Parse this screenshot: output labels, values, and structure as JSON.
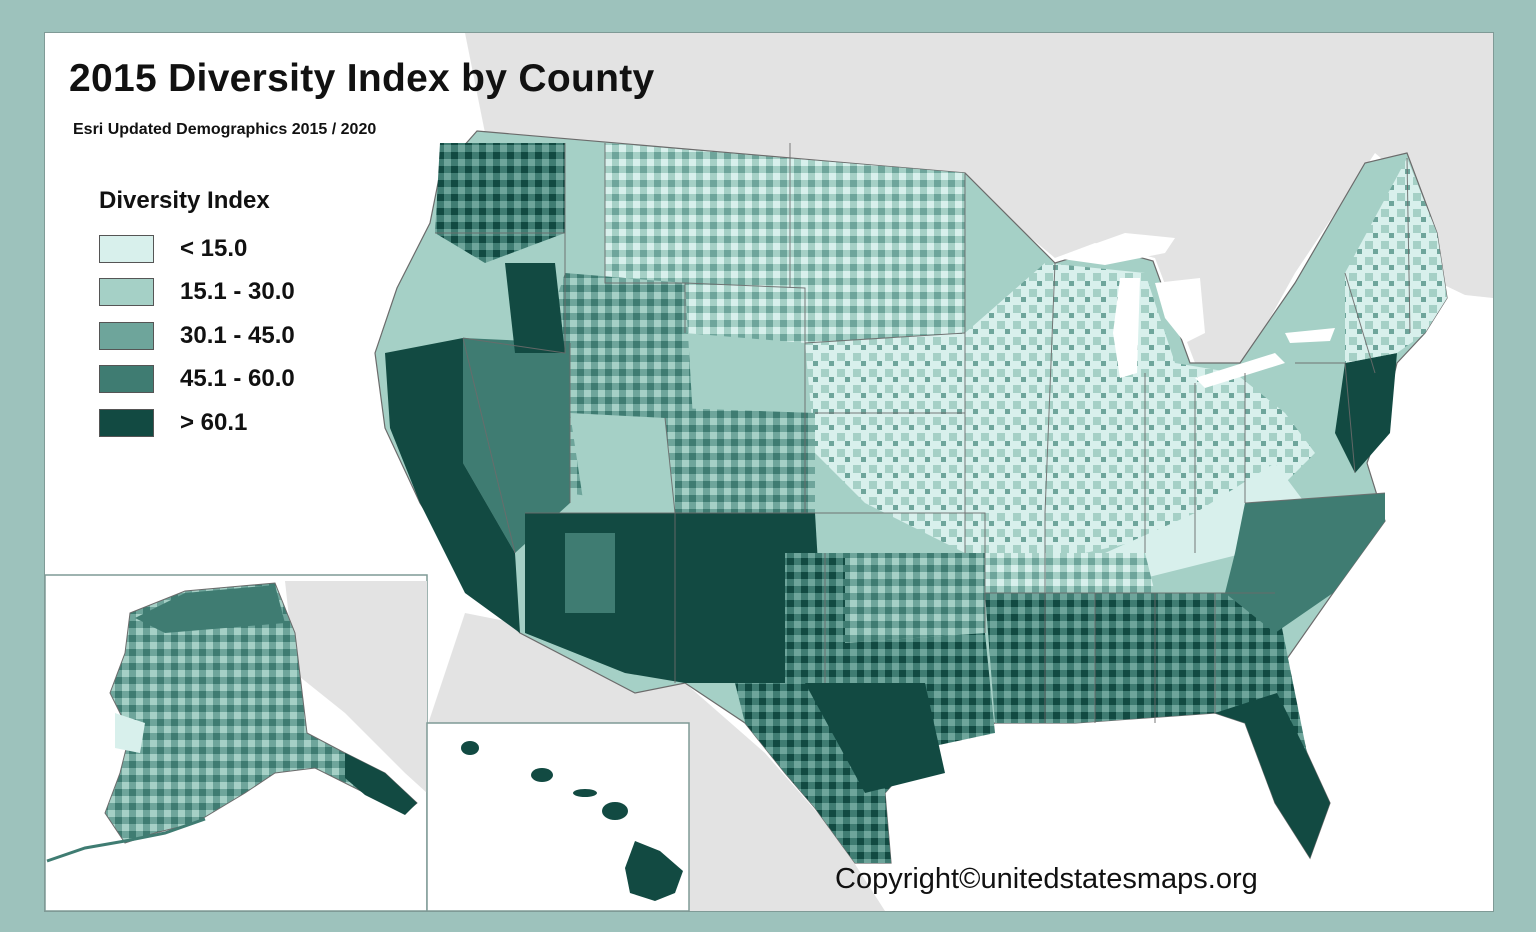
{
  "title": "2015 Diversity Index by County",
  "subtitle": "Esri Updated Demographics 2015 / 2020",
  "legend": {
    "title": "Diversity Index",
    "items": [
      {
        "label": "< 15.0",
        "color": "#d8f0ec"
      },
      {
        "label": "15.1 - 30.0",
        "color": "#a5d0c6"
      },
      {
        "label": "30.1 - 45.0",
        "color": "#6ea59b"
      },
      {
        "label": "45.1 - 60.0",
        "color": "#3f7c72"
      },
      {
        "label": "> 60.1",
        "color": "#124a42"
      }
    ]
  },
  "copyright": "Copyright©unitedstatesmaps.org",
  "colors": {
    "outer_border": "#9dc2bc",
    "land_gray": "#e3e3e3",
    "water": "#ffffff",
    "state_line": "#6b6b6b"
  }
}
